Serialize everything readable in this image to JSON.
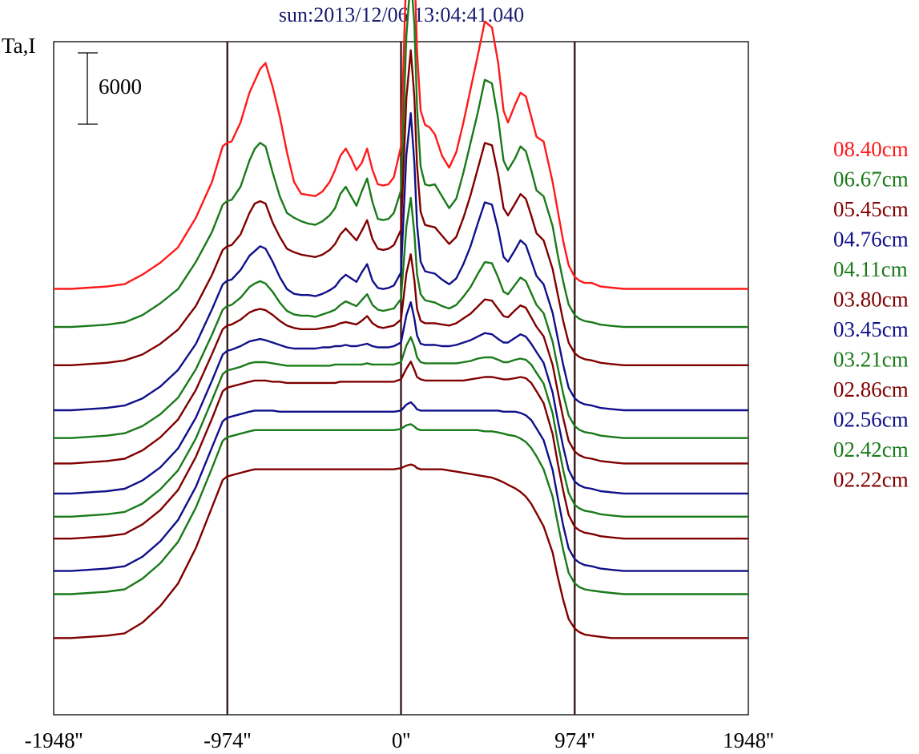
{
  "chart_data": {
    "type": "line",
    "title": "sun:2013/12/06 13:04:41.040",
    "ylabel": "Ta,I",
    "xlim": [
      -1948,
      1948
    ],
    "x_ticks": [
      "-1948''",
      "-974''",
      "0''",
      "974''",
      "1948''"
    ],
    "vertical_lines": [
      -974,
      0,
      974
    ],
    "scale_bar": {
      "label": "6000",
      "value": 6000
    },
    "grid": false,
    "legend_position": "right",
    "x": [
      -1948,
      -1850,
      -1750,
      -1650,
      -1550,
      -1450,
      -1350,
      -1250,
      -1150,
      -1060,
      -1000,
      -975,
      -950,
      -900,
      -850,
      -820,
      -790,
      -760,
      -720,
      -680,
      -640,
      -600,
      -560,
      -520,
      -480,
      -440,
      -400,
      -370,
      -340,
      -310,
      -280,
      -250,
      -220,
      -190,
      -160,
      -130,
      -100,
      -70,
      -40,
      0,
      30,
      55,
      75,
      90,
      110,
      135,
      160,
      190,
      230,
      270,
      310,
      350,
      390,
      430,
      470,
      510,
      545,
      575,
      600,
      640,
      670,
      700,
      730,
      760,
      800,
      850,
      880,
      910,
      940,
      974,
      1000,
      1030,
      1070,
      1120,
      1180,
      1250,
      1350,
      1450,
      1550,
      1650,
      1750,
      1850,
      1948
    ],
    "series": [
      {
        "name": "08.40cm",
        "color": "#ff1a1a",
        "baseline": 36000,
        "values": [
          0,
          0,
          100,
          200,
          400,
          1200,
          2200,
          3500,
          6000,
          9000,
          12000,
          12300,
          12400,
          14000,
          16500,
          17500,
          18500,
          19000,
          17000,
          14500,
          11500,
          9000,
          8000,
          7900,
          7800,
          8200,
          9000,
          10000,
          11200,
          11800,
          11000,
          10000,
          10600,
          11800,
          10000,
          8800,
          8700,
          8800,
          9400,
          12000,
          27000,
          31000,
          27500,
          20000,
          15000,
          13800,
          13600,
          13000,
          11200,
          10200,
          11500,
          14000,
          16800,
          19600,
          22500,
          22000,
          19000,
          15000,
          14000,
          15500,
          16500,
          16200,
          14500,
          12800,
          12400,
          9000,
          6500,
          4000,
          2000,
          1000,
          700,
          500,
          500,
          200,
          100,
          0,
          0,
          0,
          0,
          0,
          0,
          0,
          0
        ]
      },
      {
        "name": "06.67cm",
        "color": "#1a7a1a",
        "baseline": 32700,
        "values": [
          0,
          0,
          100,
          200,
          400,
          1000,
          2000,
          3200,
          5500,
          8000,
          10300,
          10600,
          10700,
          11800,
          14000,
          15000,
          15500,
          15200,
          13000,
          11000,
          9600,
          9200,
          8900,
          8700,
          8600,
          8900,
          9400,
          10000,
          11200,
          11800,
          11000,
          10200,
          11400,
          12500,
          10500,
          9100,
          9000,
          9100,
          9600,
          11500,
          24500,
          29500,
          25500,
          18500,
          13500,
          12000,
          11900,
          12000,
          11000,
          10000,
          10800,
          13000,
          15500,
          18000,
          20800,
          20500,
          17500,
          14000,
          13200,
          14200,
          15200,
          14800,
          13200,
          11500,
          11000,
          8500,
          6000,
          3800,
          1900,
          1000,
          700,
          500,
          400,
          200,
          100,
          0,
          0,
          0,
          0,
          0,
          0,
          0,
          0
        ]
      },
      {
        "name": "05.45cm",
        "color": "#800000",
        "baseline": 29400,
        "values": [
          0,
          0,
          100,
          200,
          400,
          900,
          1800,
          3000,
          5000,
          7600,
          9700,
          10000,
          10100,
          11000,
          12800,
          13600,
          13800,
          13600,
          12000,
          10800,
          9800,
          9500,
          9300,
          9200,
          9100,
          9300,
          9700,
          10200,
          11000,
          11500,
          11000,
          10500,
          11300,
          12200,
          10600,
          9800,
          9700,
          9800,
          10100,
          11400,
          22500,
          26500,
          22500,
          16800,
          12900,
          11800,
          11700,
          11600,
          10900,
          10200,
          10800,
          12400,
          14300,
          16500,
          18700,
          18500,
          16000,
          13200,
          12600,
          13600,
          14400,
          14000,
          12600,
          11100,
          10500,
          8100,
          5900,
          3700,
          1900,
          1000,
          700,
          500,
          400,
          200,
          100,
          0,
          0,
          0,
          0,
          0,
          0,
          0,
          0
        ]
      },
      {
        "name": "04.76cm",
        "color": "#10108a",
        "baseline": 25500,
        "values": [
          0,
          0,
          100,
          200,
          400,
          1000,
          2000,
          3400,
          5600,
          8500,
          10600,
          10900,
          11000,
          11800,
          13000,
          13400,
          13800,
          13600,
          12500,
          11200,
          10200,
          9800,
          9700,
          9700,
          9600,
          9800,
          10100,
          10400,
          11000,
          11400,
          11100,
          10800,
          11600,
          12300,
          10900,
          10300,
          10200,
          10300,
          10500,
          11600,
          21500,
          25000,
          20800,
          15600,
          12500,
          11700,
          11600,
          11500,
          11000,
          10600,
          11100,
          12300,
          13800,
          15700,
          17500,
          17300,
          15200,
          12900,
          12500,
          13500,
          14300,
          13900,
          12600,
          11300,
          10600,
          8200,
          6000,
          3800,
          1900,
          1000,
          700,
          500,
          400,
          200,
          100,
          0,
          0,
          0,
          0,
          0,
          0,
          0,
          0
        ]
      },
      {
        "name": "04.11cm",
        "color": "#1a7a1a",
        "baseline": 23100,
        "values": [
          0,
          0,
          100,
          200,
          400,
          1000,
          2000,
          3400,
          5800,
          8700,
          10800,
          11100,
          11200,
          11800,
          12700,
          13000,
          13200,
          13000,
          12300,
          11400,
          10700,
          10400,
          10300,
          10300,
          10200,
          10400,
          10600,
          10800,
          11200,
          11500,
          11300,
          11100,
          11600,
          12100,
          11200,
          10800,
          10700,
          10800,
          10900,
          11700,
          17800,
          20200,
          17200,
          13800,
          12100,
          11600,
          11500,
          11400,
          11100,
          10900,
          11200,
          11900,
          12700,
          13800,
          14800,
          14700,
          13500,
          12300,
          12100,
          12900,
          13500,
          13200,
          12200,
          11200,
          10500,
          8100,
          5900,
          3700,
          1900,
          1000,
          700,
          500,
          400,
          200,
          100,
          0,
          0,
          0,
          0,
          0,
          0,
          0,
          0
        ]
      },
      {
        "name": "03.80cm",
        "color": "#800000",
        "baseline": 20900,
        "values": [
          0,
          0,
          100,
          200,
          400,
          1100,
          2200,
          3700,
          6200,
          9200,
          11300,
          11600,
          11700,
          12100,
          12700,
          12900,
          13000,
          12900,
          12500,
          12000,
          11600,
          11400,
          11300,
          11300,
          11300,
          11400,
          11500,
          11600,
          11800,
          11900,
          11800,
          11700,
          12000,
          12400,
          11800,
          11500,
          11400,
          11500,
          11600,
          12100,
          16000,
          17600,
          15400,
          13000,
          12000,
          11800,
          11800,
          11800,
          11700,
          11600,
          11800,
          12200,
          12600,
          13200,
          13800,
          13700,
          13000,
          12400,
          12300,
          12900,
          13300,
          13100,
          12300,
          11500,
          10700,
          8300,
          6000,
          3800,
          1900,
          1000,
          700,
          500,
          400,
          200,
          100,
          0,
          0,
          0,
          0,
          0,
          0,
          0,
          0
        ]
      },
      {
        "name": "03.45cm",
        "color": "#10108a",
        "baseline": 18300,
        "values": [
          0,
          0,
          100,
          200,
          400,
          1100,
          2200,
          3800,
          6400,
          9500,
          11700,
          12000,
          12100,
          12400,
          12800,
          12900,
          13000,
          12900,
          12700,
          12500,
          12300,
          12200,
          12200,
          12200,
          12200,
          12300,
          12300,
          12400,
          12400,
          12500,
          12400,
          12400,
          12500,
          12600,
          12400,
          12300,
          12300,
          12300,
          12400,
          12700,
          15000,
          16100,
          14700,
          13300,
          12600,
          12500,
          12500,
          12500,
          12400,
          12400,
          12500,
          12700,
          12900,
          13200,
          13500,
          13400,
          13000,
          12700,
          12700,
          13100,
          13400,
          13200,
          12600,
          11900,
          11000,
          8500,
          6100,
          3900,
          2000,
          1000,
          700,
          500,
          400,
          200,
          100,
          0,
          0,
          0,
          0,
          0,
          0,
          0,
          0
        ]
      },
      {
        "name": "03.21cm",
        "color": "#1a7a1a",
        "baseline": 16300,
        "values": [
          0,
          0,
          100,
          200,
          400,
          1100,
          2300,
          3900,
          6600,
          9800,
          12000,
          12300,
          12400,
          12600,
          12900,
          13000,
          13000,
          13000,
          12900,
          12800,
          12700,
          12700,
          12700,
          12700,
          12700,
          12700,
          12700,
          12800,
          12800,
          12800,
          12800,
          12800,
          12800,
          12900,
          12800,
          12800,
          12800,
          12800,
          12800,
          13000,
          14400,
          15100,
          14300,
          13400,
          13000,
          12900,
          12900,
          12900,
          12900,
          12900,
          12900,
          13000,
          13100,
          13300,
          13400,
          13400,
          13200,
          13000,
          13000,
          13200,
          13300,
          13200,
          12800,
          12100,
          11200,
          8700,
          6200,
          3900,
          2000,
          1000,
          700,
          500,
          400,
          200,
          100,
          0,
          0,
          0,
          0,
          0,
          0,
          0,
          0
        ]
      },
      {
        "name": "02.86cm",
        "color": "#800000",
        "baseline": 14400,
        "values": [
          0,
          0,
          100,
          200,
          400,
          1200,
          2400,
          4100,
          6900,
          10100,
          12400,
          12700,
          12800,
          13000,
          13200,
          13300,
          13300,
          13300,
          13200,
          13200,
          13100,
          13100,
          13100,
          13100,
          13100,
          13100,
          13100,
          13100,
          13200,
          13200,
          13200,
          13200,
          13200,
          13200,
          13200,
          13200,
          13200,
          13200,
          13200,
          13400,
          14300,
          14900,
          14200,
          13600,
          13400,
          13300,
          13300,
          13300,
          13300,
          13300,
          13300,
          13300,
          13400,
          13500,
          13600,
          13600,
          13500,
          13400,
          13400,
          13500,
          13600,
          13500,
          13100,
          12400,
          11400,
          8800,
          6300,
          4000,
          2000,
          1000,
          700,
          500,
          400,
          200,
          100,
          0,
          0,
          0,
          0,
          0,
          0,
          0,
          0
        ]
      },
      {
        "name": "02.56cm",
        "color": "#10108a",
        "baseline": 11600,
        "values": [
          0,
          0,
          100,
          200,
          400,
          1200,
          2500,
          4300,
          7100,
          10400,
          12600,
          12900,
          13000,
          13200,
          13400,
          13500,
          13500,
          13500,
          13500,
          13400,
          13400,
          13400,
          13400,
          13400,
          13400,
          13400,
          13400,
          13400,
          13400,
          13400,
          13400,
          13400,
          13400,
          13400,
          13400,
          13400,
          13400,
          13400,
          13400,
          13500,
          14000,
          14200,
          13900,
          13600,
          13500,
          13500,
          13500,
          13500,
          13500,
          13500,
          13500,
          13500,
          13500,
          13500,
          13500,
          13500,
          13500,
          13400,
          13400,
          13400,
          13300,
          13100,
          12700,
          12000,
          11000,
          8500,
          6100,
          3800,
          1900,
          1000,
          700,
          500,
          400,
          200,
          100,
          0,
          0,
          0,
          0,
          0,
          0,
          0,
          0
        ]
      },
      {
        "name": "02.42cm",
        "color": "#1a7a1a",
        "baseline": 9600,
        "values": [
          0,
          0,
          100,
          200,
          400,
          1300,
          2600,
          4400,
          7300,
          10600,
          12900,
          13200,
          13300,
          13500,
          13700,
          13800,
          13800,
          13800,
          13800,
          13800,
          13800,
          13800,
          13800,
          13800,
          13800,
          13800,
          13800,
          13800,
          13800,
          13800,
          13800,
          13800,
          13800,
          13800,
          13800,
          13800,
          13800,
          13800,
          13800,
          13900,
          14200,
          14300,
          14100,
          13900,
          13800,
          13800,
          13800,
          13800,
          13800,
          13800,
          13800,
          13800,
          13800,
          13800,
          13700,
          13700,
          13600,
          13500,
          13400,
          13300,
          13100,
          12800,
          12300,
          11600,
          10500,
          8200,
          5900,
          3700,
          1800,
          900,
          600,
          400,
          300,
          200,
          100,
          0,
          0,
          0,
          0,
          0,
          0,
          0,
          0
        ]
      },
      {
        "name": "02.22cm",
        "color": "#800000",
        "baseline": 5800,
        "values": [
          0,
          0,
          100,
          200,
          400,
          1300,
          2700,
          4600,
          7600,
          11000,
          13300,
          13600,
          13700,
          13900,
          14100,
          14200,
          14200,
          14200,
          14200,
          14200,
          14200,
          14200,
          14200,
          14200,
          14200,
          14200,
          14200,
          14200,
          14200,
          14200,
          14200,
          14200,
          14200,
          14200,
          14200,
          14200,
          14200,
          14200,
          14200,
          14300,
          14500,
          14600,
          14500,
          14300,
          14200,
          14200,
          14200,
          14200,
          14200,
          14100,
          14000,
          13900,
          13800,
          13700,
          13600,
          13500,
          13300,
          13100,
          12900,
          12600,
          12300,
          11900,
          11300,
          10500,
          9400,
          7200,
          5100,
          3200,
          1600,
          800,
          500,
          300,
          200,
          100,
          0,
          0,
          0,
          0,
          0,
          0,
          0,
          0,
          0
        ]
      }
    ],
    "legend_order": [
      "08.40cm",
      "06.67cm",
      "05.45cm",
      "04.76cm",
      "04.11cm",
      "03.80cm",
      "03.45cm",
      "03.21cm",
      "02.86cm",
      "02.56cm",
      "02.42cm",
      "02.22cm"
    ]
  }
}
